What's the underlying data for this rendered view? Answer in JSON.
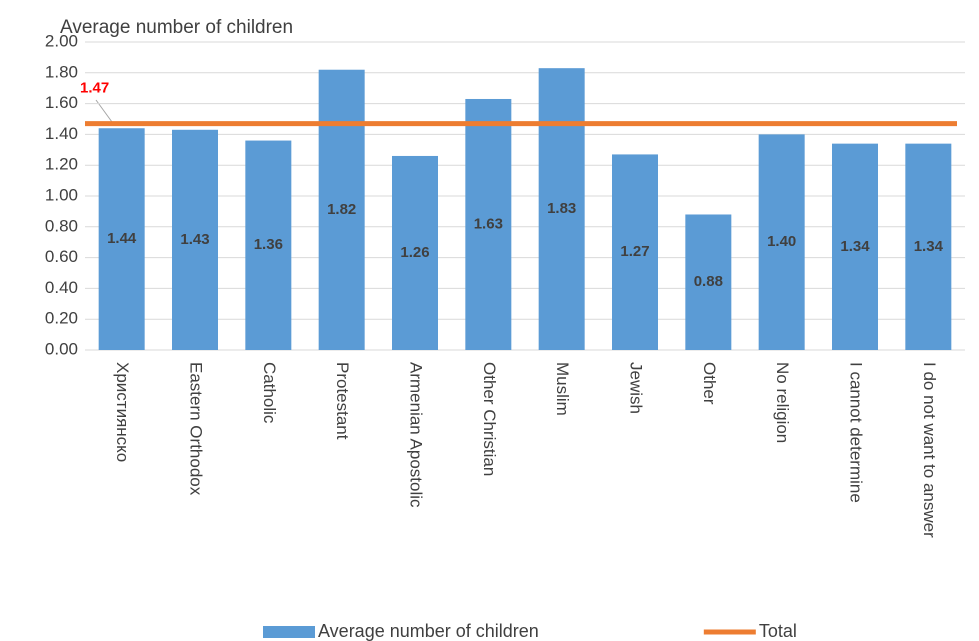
{
  "chart_data": {
    "type": "bar",
    "title": "Average number of children",
    "categories": [
      "Християнско",
      "Eastern Orthodox",
      "Catholic",
      "Protestant",
      "Armenian Apostolic",
      "Other Christian",
      "Muslim",
      "Jewish",
      "Other",
      "No religion",
      "I cannot determine",
      "I do not want to answer"
    ],
    "series": [
      {
        "name": "Average number of children",
        "color": "#5b9bd5",
        "type": "bar",
        "values": [
          1.44,
          1.43,
          1.36,
          1.82,
          1.26,
          1.63,
          1.83,
          1.27,
          0.88,
          1.4,
          1.34,
          1.34
        ],
        "value_labels": [
          "1.44",
          "1.43",
          "1.36",
          "1.82",
          "1.26",
          "1.63",
          "1.83",
          "1.27",
          "0.88",
          "1.40",
          "1.34",
          "1.34"
        ]
      },
      {
        "name": "Total",
        "color": "#ed7d31",
        "type": "line",
        "values": [
          1.47,
          1.47,
          1.47,
          1.47,
          1.47,
          1.47,
          1.47,
          1.47,
          1.47,
          1.47,
          1.47,
          1.47
        ]
      }
    ],
    "annotations": [
      {
        "text": "1.47",
        "value": 1.47,
        "color": "#ff0000"
      }
    ],
    "ylim": [
      0,
      2
    ],
    "yticks": [
      {
        "value": 0,
        "label": "0.00"
      },
      {
        "value": 0.2,
        "label": "0.20"
      },
      {
        "value": 0.4,
        "label": "0.40"
      },
      {
        "value": 0.6,
        "label": "0.60"
      },
      {
        "value": 0.8,
        "label": "0.80"
      },
      {
        "value": 1,
        "label": "1.00"
      },
      {
        "value": 1.2,
        "label": "1.20"
      },
      {
        "value": 1.4,
        "label": "1.40"
      },
      {
        "value": 1.6,
        "label": "1.60"
      },
      {
        "value": 1.8,
        "label": "1.80"
      },
      {
        "value": 2,
        "label": "2.00"
      }
    ],
    "grid": true,
    "legend": "bottom"
  }
}
